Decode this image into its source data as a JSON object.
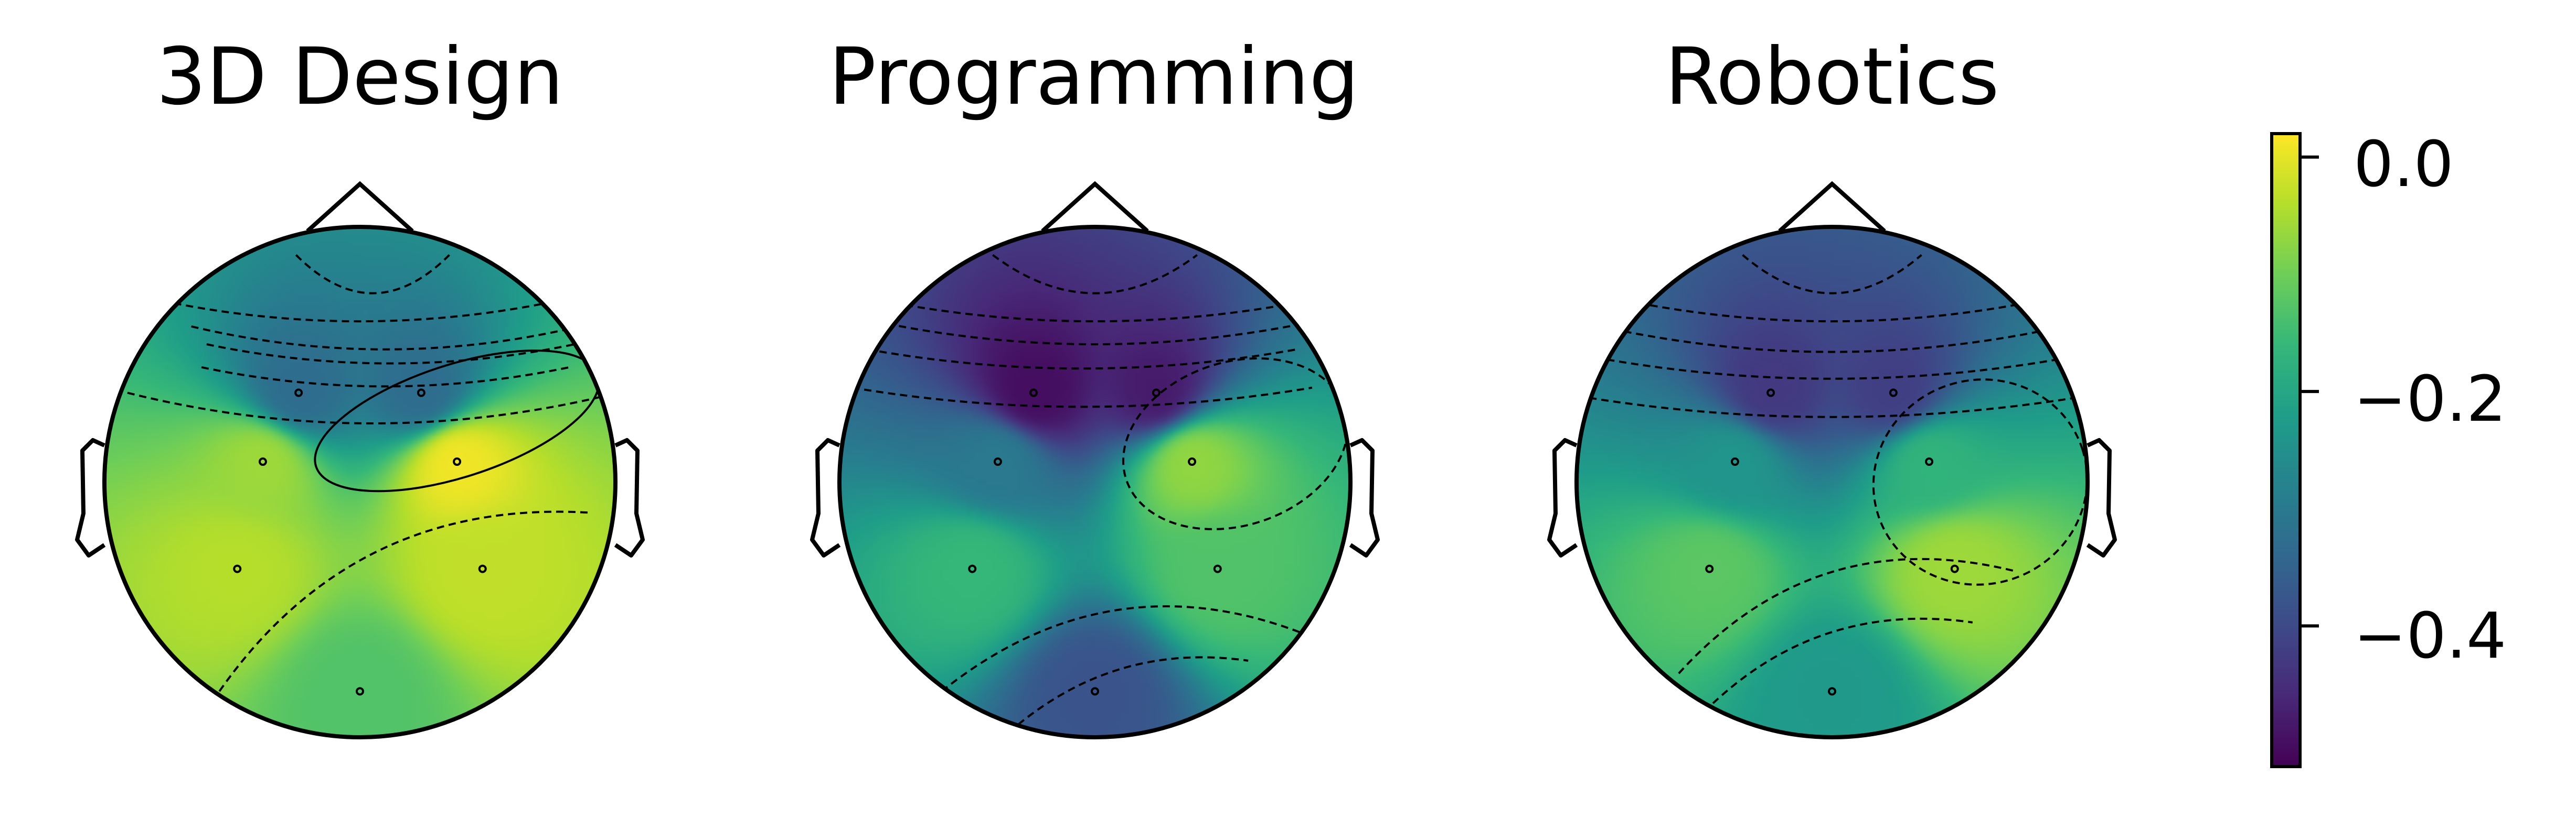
{
  "chart_data": {
    "type": "heatmap",
    "subtype": "eeg-topomap",
    "colormap": "viridis",
    "colorbar": {
      "range": [
        -0.52,
        0.02
      ],
      "ticks": [
        0.0,
        -0.2,
        -0.4
      ],
      "tick_labels": [
        "0.0",
        "−0.2",
        "−0.4"
      ],
      "stops": [
        "#440154",
        "#482878",
        "#3e4a89",
        "#31688e",
        "#26828e",
        "#1f9e89",
        "#35b779",
        "#6ece58",
        "#b5de2b",
        "#fde725"
      ]
    },
    "panels": [
      {
        "title": "3D Design",
        "channels": [
          {
            "pos": "front-left",
            "value": -0.33
          },
          {
            "pos": "front-right",
            "value": -0.33
          },
          {
            "pos": "frontal-left",
            "value": -0.06
          },
          {
            "pos": "frontal-right",
            "value": 0.01
          },
          {
            "pos": "central-left",
            "value": -0.04
          },
          {
            "pos": "central-right",
            "value": -0.03
          },
          {
            "pos": "parietal",
            "value": -0.13
          }
        ]
      },
      {
        "title": "Programming",
        "channels": [
          {
            "pos": "front-left",
            "value": -0.5
          },
          {
            "pos": "front-right",
            "value": -0.48
          },
          {
            "pos": "frontal-left",
            "value": -0.3
          },
          {
            "pos": "frontal-right",
            "value": -0.07
          },
          {
            "pos": "central-left",
            "value": -0.16
          },
          {
            "pos": "central-right",
            "value": -0.13
          },
          {
            "pos": "parietal",
            "value": -0.38
          }
        ]
      },
      {
        "title": "Robotics",
        "channels": [
          {
            "pos": "front-left",
            "value": -0.43
          },
          {
            "pos": "front-right",
            "value": -0.42
          },
          {
            "pos": "frontal-left",
            "value": -0.24
          },
          {
            "pos": "frontal-right",
            "value": -0.17
          },
          {
            "pos": "central-left",
            "value": -0.12
          },
          {
            "pos": "central-right",
            "value": -0.06
          },
          {
            "pos": "parietal",
            "value": -0.23
          }
        ]
      }
    ],
    "sensor_layout": {
      "front-left": [
        -0.24,
        0.35
      ],
      "front-right": [
        0.24,
        0.35
      ],
      "frontal-left": [
        -0.38,
        0.08
      ],
      "frontal-right": [
        0.38,
        0.08
      ],
      "central-left": [
        -0.48,
        -0.34
      ],
      "central-right": [
        0.48,
        -0.34
      ],
      "parietal": [
        0.0,
        -0.82
      ]
    },
    "contours": [
      {
        "panel": 0,
        "level": -0.43,
        "shape": "arc",
        "dy": 0.95,
        "dx": 0.05,
        "w": 0.3,
        "h": 0.06,
        "bend": 0.5
      },
      {
        "panel": 0,
        "level": -0.36,
        "shape": "arc",
        "dy": 0.82,
        "dx": 0.0,
        "w": 0.82,
        "h": 0.1,
        "bend": 0.3
      },
      {
        "panel": 0,
        "level": -0.3,
        "shape": "arc",
        "dy": 0.73,
        "dx": 0.1,
        "w": 0.76,
        "h": 0.12,
        "bend": 0.3
      },
      {
        "panel": 0,
        "level": -0.24,
        "shape": "arc",
        "dy": 0.66,
        "dx": 0.12,
        "w": 0.72,
        "h": 0.12,
        "bend": 0.25
      },
      {
        "panel": 0,
        "level": -0.18,
        "shape": "arc",
        "dy": 0.55,
        "dx": 0.1,
        "w": 0.72,
        "h": 0.1,
        "bend": 0.25
      },
      {
        "panel": 0,
        "level": -0.12,
        "shape": "arc",
        "dy": 0.45,
        "dx": 0.05,
        "w": 0.96,
        "h": 0.1,
        "bend": 0.4
      },
      {
        "panel": 0,
        "level": 0.0,
        "shape": "lobe",
        "cx": 0.38,
        "cy": 0.24,
        "rx": 0.58,
        "ry": 0.22,
        "solid": true
      },
      {
        "panel": 0,
        "level": -0.1,
        "shape": "sweep",
        "x0": -0.55,
        "y0": -0.82,
        "x1": 0.9,
        "y1": -0.12,
        "bend": 0.28
      },
      {
        "panel": 1,
        "level": -0.48,
        "shape": "arc",
        "dy": 0.95,
        "dx": 0.0,
        "w": 0.4,
        "h": 0.06,
        "bend": 0.5
      },
      {
        "panel": 1,
        "level": -0.43,
        "shape": "arc",
        "dy": 0.82,
        "dx": 0.0,
        "w": 0.88,
        "h": 0.1,
        "bend": 0.3
      },
      {
        "panel": 1,
        "level": -0.38,
        "shape": "arc",
        "dy": 0.73,
        "dx": 0.0,
        "w": 0.86,
        "h": 0.1,
        "bend": 0.3
      },
      {
        "panel": 1,
        "level": -0.33,
        "shape": "arc",
        "dy": 0.62,
        "dx": -0.05,
        "w": 0.84,
        "h": 0.1,
        "bend": 0.25
      },
      {
        "panel": 1,
        "level": -0.28,
        "shape": "arc",
        "dy": 0.47,
        "dx": -0.05,
        "w": 0.9,
        "h": 0.1,
        "bend": 0.25
      },
      {
        "panel": 1,
        "level": -0.1,
        "shape": "lobe",
        "cx": 0.55,
        "cy": 0.15,
        "rx": 0.45,
        "ry": 0.32,
        "solid": false
      },
      {
        "panel": 1,
        "level": -0.22,
        "shape": "sweep",
        "x0": -0.6,
        "y0": -0.82,
        "x1": 0.88,
        "y1": -0.62,
        "bend": 0.3
      },
      {
        "panel": 1,
        "level": -0.3,
        "shape": "sweep",
        "x0": -0.3,
        "y0": -0.95,
        "x1": 0.6,
        "y1": -0.7,
        "bend": 0.22
      },
      {
        "panel": 2,
        "level": -0.45,
        "shape": "arc",
        "dy": 0.95,
        "dx": 0.0,
        "w": 0.35,
        "h": 0.06,
        "bend": 0.5
      },
      {
        "panel": 2,
        "level": -0.38,
        "shape": "arc",
        "dy": 0.8,
        "dx": 0.0,
        "w": 0.85,
        "h": 0.08,
        "bend": 0.3
      },
      {
        "panel": 2,
        "level": -0.32,
        "shape": "arc",
        "dy": 0.68,
        "dx": 0.0,
        "w": 0.86,
        "h": 0.08,
        "bend": 0.3
      },
      {
        "panel": 2,
        "level": -0.26,
        "shape": "arc",
        "dy": 0.58,
        "dx": 0.0,
        "w": 0.88,
        "h": 0.1,
        "bend": 0.25
      },
      {
        "panel": 2,
        "level": -0.2,
        "shape": "arc",
        "dy": 0.43,
        "dx": 0.0,
        "w": 0.95,
        "h": 0.1,
        "bend": 0.25
      },
      {
        "panel": 2,
        "level": -0.1,
        "shape": "lobe",
        "cx": 0.58,
        "cy": 0.0,
        "rx": 0.42,
        "ry": 0.4,
        "solid": false
      },
      {
        "panel": 2,
        "level": -0.16,
        "shape": "sweep",
        "x0": -0.6,
        "y0": -0.75,
        "x1": 0.72,
        "y1": -0.35,
        "bend": 0.3
      },
      {
        "panel": 2,
        "level": -0.22,
        "shape": "sweep",
        "x0": -0.5,
        "y0": -0.9,
        "x1": 0.55,
        "y1": -0.55,
        "bend": 0.25
      }
    ]
  }
}
